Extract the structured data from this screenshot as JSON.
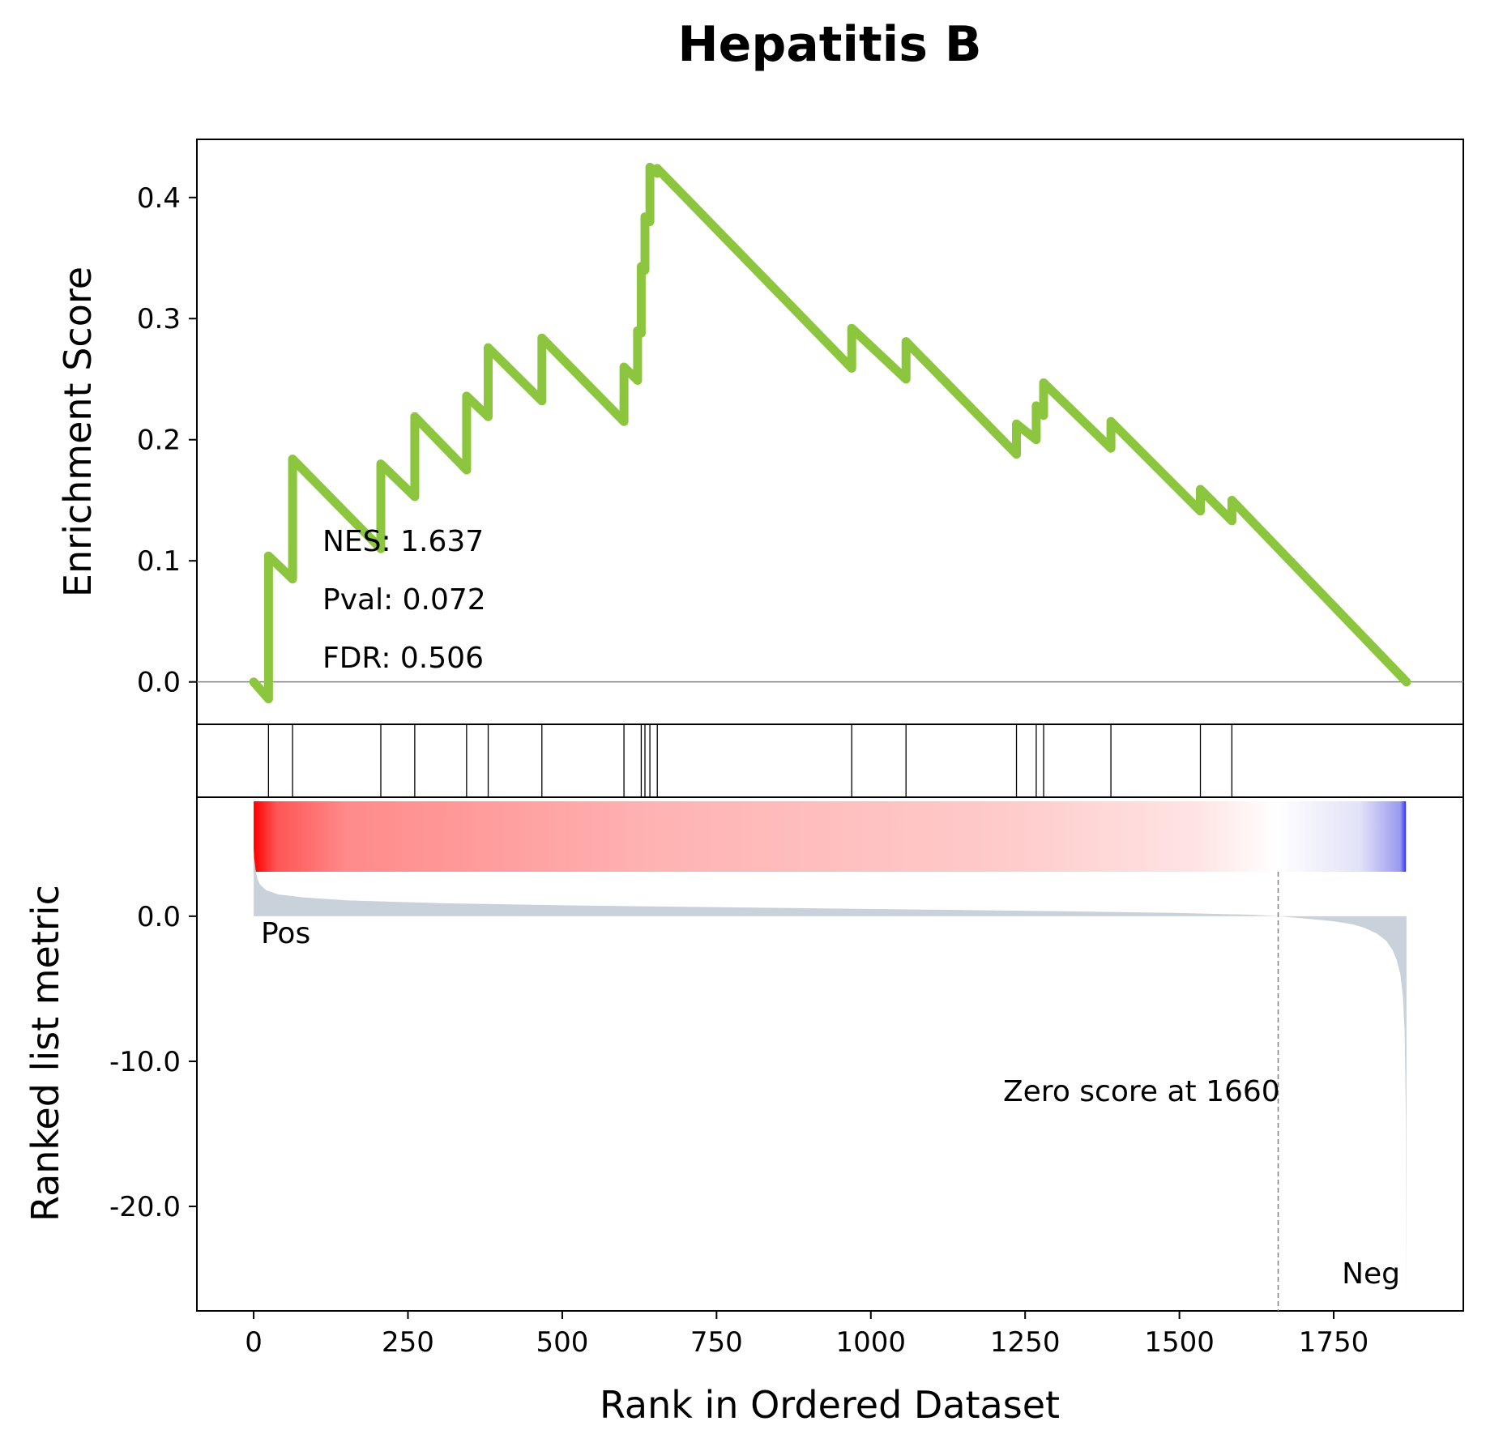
{
  "colors": {
    "es_line": "#8cc63f",
    "hits": "#000000",
    "metric_fill": "#c9d2da",
    "pos_label": "#ff0000",
    "neg_label": "#0000ff",
    "zero_line": "#808080"
  },
  "chart_data": {
    "type": "line",
    "title": "Hepatitis B",
    "xlabel": "Rank in Ordered Dataset",
    "xlim": [
      -92,
      1960
    ],
    "xticks": [
      0,
      250,
      500,
      750,
      1000,
      1250,
      1500,
      1750
    ],
    "panels": {
      "enrichment": {
        "ylabel": "Enrichment Score",
        "ylim": [
          -0.035,
          0.448
        ],
        "yticks": [
          0.0,
          0.1,
          0.2,
          0.3,
          0.4
        ],
        "ytick_labels": [
          "0.0",
          "0.1",
          "0.2",
          "0.3",
          "0.4"
        ],
        "stats": {
          "nes": "NES: 1.637",
          "pval": "Pval: 0.072",
          "fdr": "FDR: 0.506"
        },
        "series": [
          {
            "x": [
              0,
              24,
              24,
              63,
              63,
              206,
              206,
              261,
              261,
              345,
              345,
              380,
              380,
              467,
              467,
              600,
              600,
              622,
              622,
              628,
              628,
              634,
              634,
              642,
              642,
              654,
              654,
              969,
              969,
              1057,
              1057,
              1236,
              1236,
              1268,
              1268,
              1280,
              1280,
              1389,
              1389,
              1534,
              1534,
              1585,
              1585,
              1868
            ],
            "y": [
              0.0,
              -0.014,
              0.104,
              0.085,
              0.184,
              0.11,
              0.18,
              0.153,
              0.219,
              0.175,
              0.236,
              0.219,
              0.276,
              0.232,
              0.284,
              0.215,
              0.26,
              0.249,
              0.29,
              0.288,
              0.343,
              0.34,
              0.384,
              0.38,
              0.425,
              0.42,
              0.424,
              0.259,
              0.292,
              0.25,
              0.281,
              0.188,
              0.213,
              0.2,
              0.228,
              0.22,
              0.247,
              0.193,
              0.215,
              0.141,
              0.159,
              0.133,
              0.15,
              0.0
            ]
          }
        ]
      },
      "hits": {
        "positions": [
          24,
          63,
          206,
          261,
          345,
          380,
          467,
          600,
          628,
          634,
          642,
          654,
          969,
          1057,
          1236,
          1268,
          1280,
          1389,
          1534,
          1585
        ]
      },
      "ranked_metric": {
        "ylabel": "Ranked list metric",
        "ylim": [
          -27.2,
          8.2
        ],
        "yticks": [
          0.0,
          -10.0,
          -20.0
        ],
        "ytick_labels": [
          "0.0",
          "-10.0",
          "-20.0"
        ],
        "n": 1868,
        "zero_score_at": 1660,
        "zero_label": "Zero score at 1660",
        "pos_label": "Pos",
        "neg_label": "Neg",
        "profile_x": [
          0,
          1,
          3,
          6,
          10,
          20,
          40,
          80,
          150,
          300,
          500,
          700,
          900,
          1100,
          1300,
          1500,
          1620,
          1660,
          1700,
          1750,
          1780,
          1800,
          1820,
          1835,
          1845,
          1852,
          1858,
          1862,
          1865,
          1867,
          1868
        ],
        "profile_y": [
          4.7,
          4.0,
          3.2,
          2.6,
          2.2,
          1.8,
          1.5,
          1.3,
          1.1,
          0.9,
          0.75,
          0.65,
          0.55,
          0.45,
          0.35,
          0.22,
          0.1,
          0.0,
          -0.15,
          -0.35,
          -0.55,
          -0.8,
          -1.2,
          -1.7,
          -2.3,
          -3.0,
          -4.0,
          -5.5,
          -8.0,
          -14.0,
          -26.5
        ]
      }
    }
  }
}
